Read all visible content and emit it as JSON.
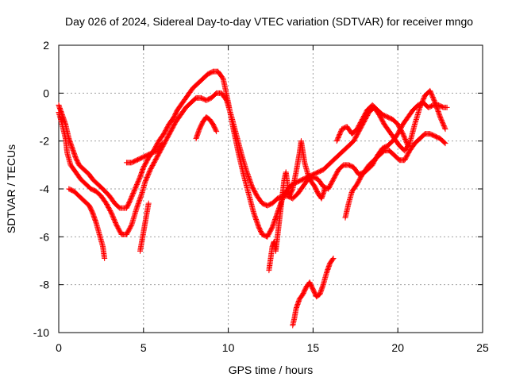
{
  "chart_data": {
    "type": "scatter",
    "title": "Day 026 of 2024, Sidereal Day-to-day VTEC variation (SDTVAR) for receiver mngo",
    "xlabel": "GPS time / hours",
    "ylabel": "SDTVAR / TECUs",
    "xlim": [
      0,
      25
    ],
    "ylim": [
      -10,
      2
    ],
    "xticks": [
      0,
      5,
      10,
      15,
      20,
      25
    ],
    "yticks": [
      -10,
      -8,
      -6,
      -4,
      -2,
      0,
      2
    ],
    "grid": true,
    "marker": "plus",
    "color": "#ff0000",
    "series": [
      {
        "points": [
          [
            0.0,
            -0.5
          ],
          [
            0.2,
            -0.9
          ],
          [
            0.4,
            -1.3
          ],
          [
            0.6,
            -1.9
          ],
          [
            0.8,
            -2.3
          ],
          [
            1.0,
            -2.7
          ],
          [
            1.2,
            -3.0
          ],
          [
            1.5,
            -3.2
          ],
          [
            1.8,
            -3.4
          ],
          [
            2.0,
            -3.6
          ],
          [
            2.3,
            -3.8
          ],
          [
            2.6,
            -4.0
          ],
          [
            3.0,
            -4.3
          ],
          [
            3.3,
            -4.6
          ],
          [
            3.6,
            -4.8
          ],
          [
            4.0,
            -4.8
          ],
          [
            4.2,
            -4.5
          ],
          [
            4.5,
            -4.0
          ],
          [
            4.8,
            -3.5
          ],
          [
            5.0,
            -3.1
          ],
          [
            5.3,
            -2.7
          ],
          [
            5.6,
            -2.4
          ],
          [
            5.9,
            -2.0
          ],
          [
            6.2,
            -1.7
          ],
          [
            6.5,
            -1.3
          ],
          [
            6.8,
            -1.0
          ],
          [
            7.0,
            -0.7
          ],
          [
            7.3,
            -0.4
          ],
          [
            7.6,
            -0.1
          ],
          [
            7.9,
            0.2
          ],
          [
            8.2,
            0.4
          ],
          [
            8.5,
            0.6
          ],
          [
            8.8,
            0.8
          ],
          [
            9.1,
            0.9
          ],
          [
            9.4,
            0.9
          ],
          [
            9.7,
            0.6
          ],
          [
            10.0,
            -0.4
          ],
          [
            10.3,
            -1.5
          ],
          [
            10.6,
            -2.5
          ],
          [
            10.9,
            -3.4
          ],
          [
            11.2,
            -4.2
          ],
          [
            11.5,
            -5.0
          ],
          [
            11.8,
            -5.6
          ],
          [
            12.0,
            -5.9
          ],
          [
            12.3,
            -6.0
          ],
          [
            12.6,
            -5.6
          ],
          [
            12.9,
            -5.0
          ],
          [
            13.2,
            -4.4
          ],
          [
            13.5,
            -4.0
          ],
          [
            13.8,
            -3.8
          ],
          [
            14.1,
            -3.7
          ],
          [
            14.4,
            -3.6
          ],
          [
            14.7,
            -3.5
          ],
          [
            15.0,
            -3.4
          ],
          [
            15.3,
            -3.3
          ],
          [
            15.6,
            -3.2
          ],
          [
            15.9,
            -3.0
          ],
          [
            16.2,
            -2.8
          ],
          [
            16.5,
            -2.6
          ],
          [
            16.8,
            -2.4
          ],
          [
            17.1,
            -2.2
          ],
          [
            17.4,
            -2.0
          ],
          [
            17.7,
            -1.6
          ],
          [
            18.0,
            -1.2
          ],
          [
            18.3,
            -0.8
          ],
          [
            18.6,
            -0.6
          ],
          [
            18.9,
            -0.9
          ],
          [
            19.2,
            -1.3
          ],
          [
            19.5,
            -1.6
          ],
          [
            19.8,
            -1.9
          ],
          [
            20.1,
            -2.2
          ],
          [
            20.4,
            -2.4
          ],
          [
            20.7,
            -2.1
          ],
          [
            21.0,
            -1.3
          ],
          [
            21.3,
            -0.6
          ],
          [
            21.6,
            -0.1
          ],
          [
            21.9,
            0.1
          ],
          [
            22.2,
            -0.4
          ],
          [
            22.5,
            -1.0
          ],
          [
            22.8,
            -1.5
          ]
        ]
      },
      {
        "points": [
          [
            0.0,
            -0.8
          ],
          [
            0.2,
            -1.3
          ],
          [
            0.4,
            -1.9
          ],
          [
            0.5,
            -2.5
          ],
          [
            0.7,
            -3.0
          ],
          [
            1.0,
            -3.3
          ],
          [
            1.3,
            -3.6
          ],
          [
            1.6,
            -3.8
          ],
          [
            1.9,
            -4.0
          ],
          [
            2.2,
            -4.1
          ],
          [
            2.5,
            -4.3
          ],
          [
            2.8,
            -4.6
          ],
          [
            3.1,
            -5.0
          ],
          [
            3.4,
            -5.5
          ],
          [
            3.7,
            -5.9
          ],
          [
            4.0,
            -5.9
          ],
          [
            4.3,
            -5.5
          ],
          [
            4.6,
            -4.8
          ],
          [
            4.9,
            -4.2
          ],
          [
            5.1,
            -3.7
          ],
          [
            5.4,
            -3.2
          ],
          [
            5.7,
            -2.8
          ],
          [
            6.0,
            -2.4
          ],
          [
            6.3,
            -2.0
          ],
          [
            6.6,
            -1.6
          ],
          [
            6.9,
            -1.2
          ],
          [
            7.2,
            -0.9
          ],
          [
            7.5,
            -0.6
          ],
          [
            7.8,
            -0.4
          ],
          [
            8.1,
            -0.2
          ],
          [
            8.4,
            -0.2
          ],
          [
            8.7,
            -0.3
          ],
          [
            9.0,
            -0.2
          ],
          [
            9.3,
            0.0
          ],
          [
            9.6,
            0.0
          ],
          [
            9.9,
            -0.3
          ],
          [
            10.2,
            -1.0
          ],
          [
            10.5,
            -1.8
          ],
          [
            10.8,
            -2.6
          ],
          [
            11.1,
            -3.3
          ],
          [
            11.4,
            -3.9
          ],
          [
            11.7,
            -4.3
          ],
          [
            12.0,
            -4.6
          ],
          [
            12.3,
            -4.7
          ],
          [
            12.6,
            -4.6
          ],
          [
            12.9,
            -4.4
          ],
          [
            13.2,
            -4.3
          ],
          [
            13.5,
            -4.3
          ],
          [
            13.8,
            -4.4
          ],
          [
            14.1,
            -4.2
          ],
          [
            14.4,
            -3.9
          ],
          [
            14.7,
            -3.6
          ],
          [
            15.0,
            -3.5
          ],
          [
            15.3,
            -3.6
          ],
          [
            15.6,
            -3.9
          ],
          [
            15.9,
            -4.0
          ],
          [
            16.2,
            -3.6
          ],
          [
            16.5,
            -3.2
          ],
          [
            16.8,
            -3.0
          ],
          [
            17.1,
            -3.0
          ],
          [
            17.4,
            -3.1
          ],
          [
            17.7,
            -3.4
          ],
          [
            18.0,
            -3.3
          ],
          [
            18.3,
            -3.0
          ],
          [
            18.6,
            -2.8
          ],
          [
            18.9,
            -2.6
          ],
          [
            19.2,
            -2.4
          ],
          [
            19.5,
            -2.4
          ],
          [
            19.8,
            -2.6
          ],
          [
            20.1,
            -2.8
          ],
          [
            20.4,
            -2.8
          ],
          [
            20.7,
            -2.4
          ],
          [
            21.0,
            -2.1
          ],
          [
            21.3,
            -1.9
          ],
          [
            21.6,
            -1.7
          ],
          [
            21.9,
            -1.7
          ],
          [
            22.2,
            -1.8
          ],
          [
            22.5,
            -1.9
          ],
          [
            22.8,
            -2.1
          ]
        ]
      },
      {
        "points": [
          [
            0.6,
            -4.0
          ],
          [
            0.9,
            -4.1
          ],
          [
            1.2,
            -4.3
          ],
          [
            1.5,
            -4.5
          ],
          [
            1.8,
            -4.7
          ],
          [
            2.0,
            -5.0
          ],
          [
            2.2,
            -5.4
          ],
          [
            2.4,
            -5.9
          ],
          [
            2.6,
            -6.4
          ],
          [
            2.7,
            -6.9
          ]
        ]
      },
      {
        "points": [
          [
            4.0,
            -2.9
          ],
          [
            4.3,
            -2.9
          ],
          [
            4.6,
            -2.8
          ],
          [
            4.9,
            -2.7
          ],
          [
            5.2,
            -2.6
          ],
          [
            5.5,
            -2.5
          ],
          [
            5.8,
            -2.4
          ],
          [
            6.1,
            -2.1
          ]
        ]
      },
      {
        "points": [
          [
            4.8,
            -6.6
          ],
          [
            4.9,
            -6.2
          ],
          [
            5.0,
            -5.8
          ],
          [
            5.1,
            -5.4
          ],
          [
            5.2,
            -5.0
          ],
          [
            5.3,
            -4.6
          ]
        ]
      },
      {
        "points": [
          [
            8.1,
            -1.9
          ],
          [
            8.3,
            -1.5
          ],
          [
            8.5,
            -1.2
          ],
          [
            8.7,
            -1.0
          ],
          [
            8.9,
            -1.1
          ],
          [
            9.1,
            -1.3
          ],
          [
            9.3,
            -1.6
          ]
        ]
      },
      {
        "points": [
          [
            12.4,
            -7.4
          ],
          [
            12.5,
            -6.9
          ],
          [
            12.6,
            -6.4
          ],
          [
            12.7,
            -6.2
          ],
          [
            12.8,
            -6.6
          ],
          [
            12.9,
            -6.0
          ],
          [
            13.0,
            -5.4
          ],
          [
            13.1,
            -4.8
          ],
          [
            13.2,
            -4.2
          ],
          [
            13.3,
            -3.6
          ],
          [
            13.4,
            -3.3
          ],
          [
            13.5,
            -3.8
          ],
          [
            13.6,
            -4.3
          ],
          [
            13.8,
            -4.0
          ],
          [
            14.0,
            -3.3
          ],
          [
            14.2,
            -2.5
          ],
          [
            14.3,
            -2.0
          ],
          [
            14.5,
            -2.9
          ],
          [
            14.7,
            -3.4
          ],
          [
            14.9,
            -3.7
          ],
          [
            15.1,
            -3.9
          ],
          [
            15.3,
            -4.2
          ],
          [
            15.5,
            -4.4
          ],
          [
            15.7,
            -4.0
          ]
        ]
      },
      {
        "points": [
          [
            13.8,
            -9.7
          ],
          [
            13.9,
            -9.4
          ],
          [
            14.0,
            -9.0
          ],
          [
            14.2,
            -8.6
          ],
          [
            14.4,
            -8.4
          ],
          [
            14.6,
            -8.1
          ],
          [
            14.8,
            -7.9
          ],
          [
            15.0,
            -8.2
          ],
          [
            15.2,
            -8.5
          ],
          [
            15.4,
            -8.4
          ],
          [
            15.6,
            -8.0
          ],
          [
            15.8,
            -7.5
          ],
          [
            16.0,
            -7.1
          ],
          [
            16.2,
            -6.9
          ]
        ]
      },
      {
        "points": [
          [
            16.9,
            -5.2
          ],
          [
            17.1,
            -4.6
          ],
          [
            17.3,
            -4.1
          ],
          [
            17.6,
            -3.8
          ],
          [
            17.9,
            -3.4
          ],
          [
            18.2,
            -3.2
          ],
          [
            18.5,
            -3.0
          ],
          [
            18.8,
            -2.6
          ],
          [
            19.1,
            -2.3
          ],
          [
            19.4,
            -2.2
          ],
          [
            19.7,
            -2.0
          ],
          [
            20.0,
            -1.7
          ],
          [
            20.3,
            -1.3
          ],
          [
            20.6,
            -1.0
          ],
          [
            20.9,
            -0.7
          ],
          [
            21.2,
            -0.5
          ],
          [
            21.5,
            -0.4
          ],
          [
            21.8,
            -0.6
          ],
          [
            22.1,
            -0.5
          ],
          [
            22.4,
            -0.5
          ],
          [
            22.7,
            -0.6
          ],
          [
            22.9,
            -0.6
          ]
        ]
      },
      {
        "points": [
          [
            16.4,
            -2.0
          ],
          [
            16.7,
            -1.5
          ],
          [
            17.0,
            -1.4
          ],
          [
            17.3,
            -1.7
          ],
          [
            17.6,
            -1.5
          ],
          [
            17.9,
            -1.1
          ],
          [
            18.2,
            -0.7
          ],
          [
            18.5,
            -0.5
          ],
          [
            18.8,
            -0.7
          ],
          [
            19.1,
            -0.9
          ],
          [
            19.4,
            -1.0
          ],
          [
            19.7,
            -1.1
          ],
          [
            20.0,
            -1.3
          ],
          [
            20.3,
            -1.7
          ],
          [
            20.6,
            -2.2
          ]
        ]
      }
    ]
  }
}
